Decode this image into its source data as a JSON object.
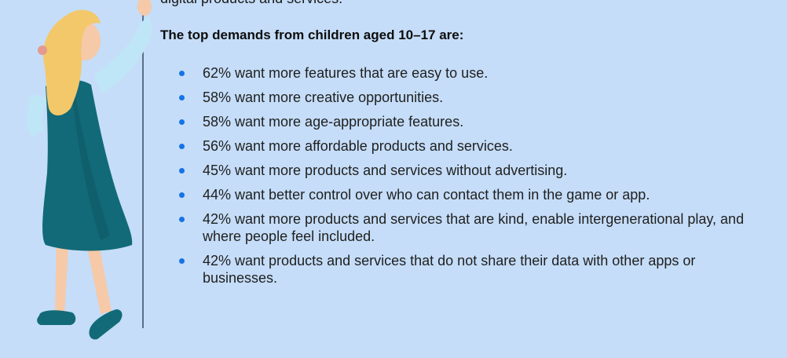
{
  "intro_tail": "digital products and services.",
  "heading": "The top demands from children aged 10–17 are:",
  "demands": [
    "62% want more features that are easy to use.",
    "58% want more creative opportunities.",
    "58% want more age-appropriate features.",
    "56% want more affordable products and services.",
    "45% want more products and services without advertising.",
    "44% want better control over who can contact them in the game or app.",
    "42% want more products and services that are kind, enable intergenerational play, and where people feel included.",
    "42% want products and services that do not share their data with other apps or businesses."
  ],
  "colors": {
    "background": "#c5ddf8",
    "bullet": "#1473e6",
    "dress": "#126a78",
    "hair": "#f3c86a",
    "sleeve": "#bfe6f7"
  },
  "illustration": {
    "subject": "girl-drawing-line-illustration"
  }
}
